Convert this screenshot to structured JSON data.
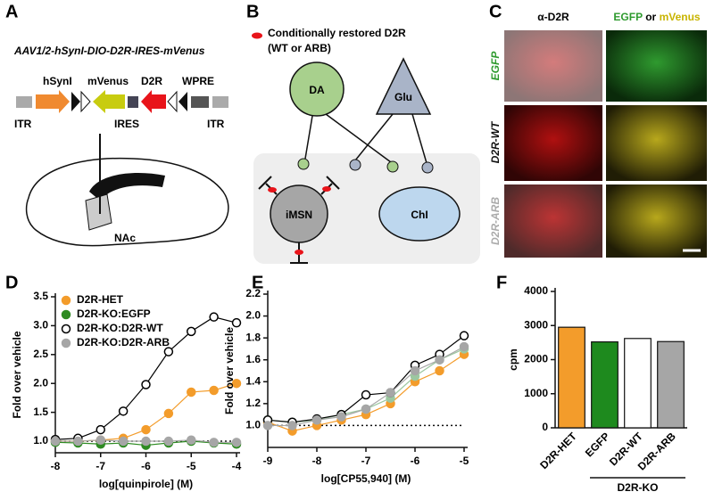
{
  "panel_labels": [
    "A",
    "B",
    "C",
    "D",
    "E",
    "F"
  ],
  "panel_a": {
    "title": "AAV1/2-hSynI-DIO-D2R-IRES-mVenus",
    "elements": [
      "hSynI",
      "mVenus",
      "D2R",
      "WPRE"
    ],
    "lower": [
      "ITR",
      "IRES",
      "ITR"
    ],
    "region": "NAc"
  },
  "panel_b": {
    "legend": [
      "Conditionally restored D2R",
      "(WT or ARB)"
    ],
    "nodes": [
      "DA",
      "Glu",
      "iMSN",
      "ChI"
    ]
  },
  "panel_c": {
    "columns": [
      "α-D2R"
    ],
    "column2": [
      "EGFP",
      "or",
      "mVenus"
    ],
    "rows": [
      "EGFP",
      "D2R-WT",
      "D2R-ARB"
    ]
  },
  "chart_data": [
    {
      "type": "scatter",
      "xlabel": "log[quinpirole] (M)",
      "ylabel": "Fold over vehicle",
      "x": [
        -8,
        -7.5,
        -7,
        -6.5,
        -6,
        -5.5,
        -5,
        -4.5,
        -4
      ],
      "xlim": [
        -8,
        -4
      ],
      "xticks": [
        -8,
        -7,
        -6,
        -5,
        -4
      ],
      "ylim": [
        0.8,
        3.5
      ],
      "yticks": [
        {
          "value": 1,
          "label": "1.0"
        },
        1.5,
        {
          "value": 2,
          "label": "2.0"
        },
        2.5,
        {
          "value": 3,
          "label": "3.0"
        },
        3.5
      ],
      "hline": 1,
      "legend": "upper left",
      "series": [
        {
          "name": "D2R-HET",
          "color": "#f39c2b",
          "values": [
            1.0,
            1.0,
            1.02,
            1.05,
            1.2,
            1.48,
            1.85,
            1.88,
            2.0
          ]
        },
        {
          "name": "D2R-KO:EGFP",
          "color": "#2e8b22",
          "values": [
            0.98,
            0.97,
            0.95,
            0.97,
            0.93,
            0.97,
            1.0,
            0.97,
            0.95
          ]
        },
        {
          "name": "D2R-KO:D2R-WT",
          "color": "#000000",
          "marker_fill": "#ffffff",
          "values": [
            1.03,
            1.05,
            1.2,
            1.52,
            1.98,
            2.55,
            2.9,
            3.15,
            3.05
          ]
        },
        {
          "name": "D2R-KO:D2R-ARB",
          "color": "#a6a6a6",
          "values": [
            1.0,
            1.0,
            1.02,
            1.0,
            1.0,
            1.0,
            1.02,
            0.98,
            0.98
          ]
        }
      ]
    },
    {
      "type": "scatter",
      "xlabel": "log[CP55,940] (M)",
      "ylabel": "Fold over vehicle",
      "x": [
        -9,
        -8.5,
        -8,
        -7.5,
        -7,
        -6.5,
        -6,
        -5.5,
        -5
      ],
      "xlim": [
        -9,
        -5
      ],
      "xticks": [
        -9,
        -8,
        -7,
        -6,
        -5
      ],
      "ylim": [
        0.8,
        2.2
      ],
      "yticks": [
        {
          "value": 1,
          "label": "1.0"
        },
        1.2,
        1.4,
        1.6,
        1.8,
        {
          "value": 2,
          "label": "2.0"
        },
        2.2
      ],
      "hline": 1,
      "series": [
        {
          "color": "#f39c2b",
          "values": [
            1.03,
            0.95,
            1.0,
            1.05,
            1.1,
            1.2,
            1.4,
            1.5,
            1.65
          ]
        },
        {
          "color": "#9cc7a0",
          "values": [
            1.05,
            1.03,
            1.05,
            1.1,
            1.15,
            1.25,
            1.45,
            1.6,
            1.7
          ]
        },
        {
          "color": "#000000",
          "marker_fill": "#ffffff",
          "values": [
            1.05,
            1.03,
            1.06,
            1.1,
            1.28,
            1.3,
            1.55,
            1.65,
            1.82
          ]
        },
        {
          "color": "#a6a6a6",
          "values": [
            1.0,
            1.0,
            1.05,
            1.08,
            1.15,
            1.3,
            1.5,
            1.6,
            1.72
          ]
        }
      ]
    },
    {
      "type": "bar",
      "ylabel": "cpm",
      "group_label": "D2R-KO",
      "categories": [
        "D2R-HET",
        "EGFP",
        "D2R-WT",
        "D2R-ARB"
      ],
      "values": [
        2950,
        2520,
        2620,
        2530
      ],
      "colors": [
        "#f39c2b",
        "#1e8a1e",
        "#ffffff",
        "#a6a6a6"
      ],
      "ylim": [
        0,
        4000
      ],
      "yticks": [
        0,
        1000,
        2000,
        3000,
        4000
      ]
    }
  ]
}
